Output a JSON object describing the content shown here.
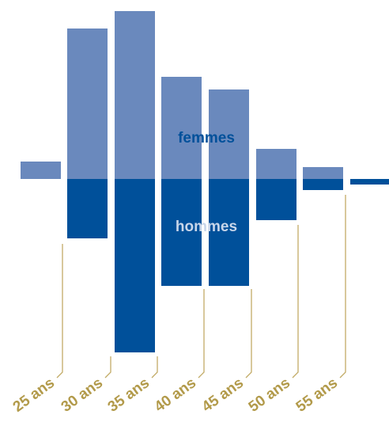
{
  "chart_data": {
    "type": "bar",
    "subtype": "diverging-stacked",
    "categories": [
      "",
      "",
      "",
      "",
      "",
      "",
      "",
      ""
    ],
    "age_labels": [
      "25 ans",
      "30 ans",
      "35 ans",
      "40 ans",
      "45 ans",
      "50 ans",
      "55 ans"
    ],
    "series": [
      {
        "name": "femmes",
        "direction": "up",
        "values": [
          22,
          190,
          212,
          129,
          113,
          38,
          15,
          0
        ]
      },
      {
        "name": "hommes",
        "direction": "down",
        "values": [
          0,
          75,
          219,
          135,
          135,
          52,
          14,
          7
        ]
      }
    ],
    "colors": {
      "femmes": "#6a89bd",
      "hommes": "#00509a",
      "femmes_label": "#00509a",
      "hommes_label": "#c8d6ea",
      "age_labels": "#b29a4a",
      "leader_lines": "#c2ab66"
    },
    "grid": false,
    "legend": "inline"
  }
}
